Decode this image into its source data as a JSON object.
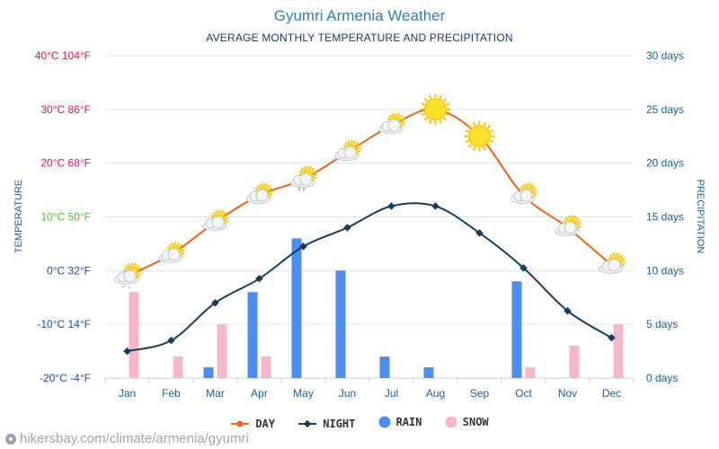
{
  "title": "Gyumri Armenia Weather",
  "subtitle": "AVERAGE MONTHLY TEMPERATURE AND PRECIPITATION",
  "source": "hikersbay.com/climate/armenia/gyumri",
  "colors": {
    "day": "#e8661c",
    "night": "#163e5c",
    "rain": "#4d8ef0",
    "snow": "#f6b8c8",
    "title": "#2f7fb6",
    "temp_axis_hot": "#e0115f",
    "temp_axis_mild": "#4ec21e",
    "temp_axis_cold": "#1f4fa0",
    "precip_axis": "#1b5f8c",
    "month_axis": "#1f5d99"
  },
  "legend": {
    "day": "DAY",
    "night": "NIGHT",
    "rain": "RAIN",
    "snow": "SNOW"
  },
  "chart_data": {
    "type": "line",
    "categories": [
      "Jan",
      "Feb",
      "Mar",
      "Apr",
      "May",
      "Jun",
      "Jul",
      "Aug",
      "Sep",
      "Oct",
      "Nov",
      "Dec"
    ],
    "series": [
      {
        "name": "DAY",
        "type": "line",
        "axis": "temperature",
        "values": [
          -1,
          3,
          9,
          14,
          17,
          22,
          27,
          30,
          25,
          14,
          8,
          1
        ]
      },
      {
        "name": "NIGHT",
        "type": "line",
        "axis": "temperature",
        "values": [
          -15,
          -13,
          -6,
          -1.5,
          4.5,
          8,
          12,
          12,
          7,
          0.5,
          -7.5,
          -12.5
        ]
      },
      {
        "name": "RAIN",
        "type": "bar",
        "axis": "precipitation",
        "values": [
          0,
          0,
          1,
          8,
          13,
          10,
          2,
          1,
          0,
          9,
          0,
          0
        ]
      },
      {
        "name": "SNOW",
        "type": "bar",
        "axis": "precipitation",
        "values": [
          8,
          2,
          5,
          2,
          0,
          0,
          0,
          0,
          0,
          1,
          3,
          5
        ]
      }
    ],
    "day_icons": [
      "snow",
      "sun-cloud",
      "sun-cloud",
      "sun-cloud",
      "sun-cloud-rain",
      "sun-cloud",
      "sun-cloud",
      "sun",
      "sun",
      "sun-cloud",
      "sun-cloud",
      "sun-cloud"
    ],
    "ylabel_left": "TEMPERATURE",
    "ylabel_right": "PRECIPITATION",
    "ylim_left": [
      -20,
      40
    ],
    "ylim_right": [
      0,
      30
    ],
    "yticks_left": [
      {
        "value": 40,
        "label": "40°C 104°F"
      },
      {
        "value": 30,
        "label": "30°C 86°F"
      },
      {
        "value": 20,
        "label": "20°C 68°F"
      },
      {
        "value": 10,
        "label": "10°C 50°F"
      },
      {
        "value": 0,
        "label": "0°C 32°F"
      },
      {
        "value": -10,
        "label": "-10°C 14°F"
      },
      {
        "value": -20,
        "label": "-20°C -4°F"
      }
    ],
    "yticks_right": [
      {
        "value": 30,
        "label": "30 days"
      },
      {
        "value": 25,
        "label": "25 days"
      },
      {
        "value": 20,
        "label": "20 days"
      },
      {
        "value": 15,
        "label": "15 days"
      },
      {
        "value": 10,
        "label": "10 days"
      },
      {
        "value": 5,
        "label": "5 days"
      },
      {
        "value": 0,
        "label": "0 days"
      }
    ],
    "grid": true,
    "legend_position": "bottom"
  }
}
